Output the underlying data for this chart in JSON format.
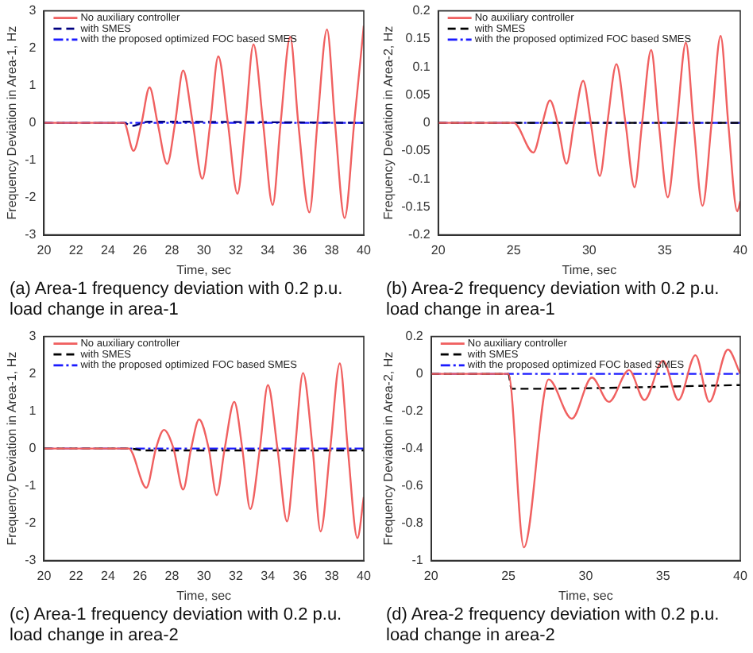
{
  "chart_data": [
    {
      "type": "line",
      "title": "(a)  Area-1 frequency deviation with 0.2 p.u. load change in area-1",
      "xlabel": "Time, sec",
      "ylabel": "Frequency Deviation in Area-1, Hz",
      "xlim": [
        20,
        40
      ],
      "xticks": [
        20,
        22,
        24,
        26,
        28,
        30,
        32,
        34,
        36,
        38,
        40
      ],
      "ylim": [
        -3,
        3
      ],
      "yticks": [
        -3,
        -2,
        -1,
        0,
        1,
        2,
        3
      ],
      "legend": "top left",
      "grid": false,
      "series": [
        {
          "name": "No auxiliary controller",
          "color": "#f06060",
          "line_style": "solid",
          "x": [
            20,
            25,
            25.6,
            26.1,
            26.6,
            27.1,
            27.7,
            28.2,
            28.7,
            29.3,
            29.9,
            30.4,
            30.9,
            31.5,
            32.1,
            32.6,
            33.1,
            33.7,
            34.3,
            34.8,
            35.4,
            35.9,
            36.6,
            37.1,
            37.7,
            38.2,
            38.8,
            39.4,
            40
          ],
          "values": [
            0,
            0,
            -0.75,
            0,
            0.95,
            0,
            -1.1,
            0,
            1.4,
            0,
            -1.5,
            0,
            1.78,
            0,
            -1.9,
            0,
            2.1,
            0,
            -2.2,
            0,
            2.3,
            0,
            -2.4,
            0,
            2.5,
            0,
            -2.55,
            0,
            2.6
          ]
        },
        {
          "name": "with SMES",
          "color": "#000080",
          "line_style": "dashed",
          "x": [
            20,
            25,
            25.5,
            26.5,
            40
          ],
          "values": [
            0,
            0,
            -0.08,
            0.03,
            0
          ]
        },
        {
          "name": "with the proposed optimized FOC based SMES",
          "color": "#1a1aff",
          "line_style": "dashdot",
          "x": [
            20,
            40
          ],
          "values": [
            0,
            0
          ]
        }
      ]
    },
    {
      "type": "line",
      "title": "(b)  Area-2 frequency deviation with 0.2 p.u. load change in area-1",
      "xlabel": "Time, sec",
      "ylabel": "Frequency Deviation in Area-2, Hz",
      "xlim": [
        20,
        40
      ],
      "xticks": [
        20,
        25,
        30,
        35,
        40
      ],
      "ylim": [
        -0.2,
        0.2
      ],
      "yticks": [
        -0.2,
        -0.15,
        -0.1,
        -0.05,
        0,
        0.05,
        0.1,
        0.15,
        0.2
      ],
      "legend": "top left",
      "grid": false,
      "series": [
        {
          "name": "No auxiliary controller",
          "color": "#f06060",
          "line_style": "solid",
          "x": [
            20,
            25,
            26.3,
            26.9,
            27.4,
            27.9,
            28.5,
            29,
            29.6,
            30.1,
            30.7,
            31.2,
            31.8,
            32.4,
            33,
            33.5,
            34.1,
            34.6,
            35.2,
            35.8,
            36.4,
            36.9,
            37.5,
            38.1,
            38.7,
            39.2,
            39.8,
            40
          ],
          "values": [
            0,
            0,
            -0.053,
            0,
            0.04,
            0,
            -0.073,
            0,
            0.075,
            0,
            -0.095,
            0,
            0.105,
            0,
            -0.115,
            0,
            0.13,
            0,
            -0.133,
            0,
            0.143,
            0,
            -0.148,
            0,
            0.155,
            0,
            -0.158,
            -0.14
          ]
        },
        {
          "name": "with SMES",
          "color": "#000000",
          "line_style": "dashed",
          "x": [
            20,
            40
          ],
          "values": [
            0,
            0
          ]
        },
        {
          "name": "with the proposed optimized FOC based SMES",
          "color": "#1a1aff",
          "line_style": "dashdot",
          "x": [
            20,
            40
          ],
          "values": [
            0,
            0
          ]
        }
      ]
    },
    {
      "type": "line",
      "title": "(c)  Area-1 frequency deviation with 0.2 p.u. load change in area-2",
      "xlabel": "Time, sec",
      "ylabel": "Frequency Deviation in Area-1, Hz",
      "xlim": [
        20,
        40
      ],
      "xticks": [
        20,
        22,
        24,
        26,
        28,
        30,
        32,
        34,
        36,
        38,
        40
      ],
      "ylim": [
        -3,
        3
      ],
      "yticks": [
        -3,
        -2,
        -1,
        0,
        1,
        2,
        3
      ],
      "legend": "top left",
      "grid": false,
      "series": [
        {
          "name": "No auxiliary controller",
          "color": "#f06060",
          "line_style": "solid",
          "x": [
            20,
            25.3,
            26.4,
            27,
            27.5,
            28.1,
            28.7,
            29.2,
            29.7,
            30.3,
            30.8,
            31.3,
            31.9,
            32.4,
            32.9,
            33.5,
            34,
            34.6,
            35.2,
            35.7,
            36.2,
            36.8,
            37.3,
            37.9,
            38.5,
            39,
            39.6,
            40
          ],
          "values": [
            0,
            0,
            -1.05,
            0,
            0.5,
            0,
            -1.1,
            0,
            0.78,
            0,
            -1.25,
            0,
            1.25,
            0,
            -1.62,
            0,
            1.7,
            0,
            -1.95,
            0,
            2.02,
            0,
            -2.22,
            0,
            2.28,
            0,
            -2.4,
            -1.3
          ]
        },
        {
          "name": "with SMES",
          "color": "#000000",
          "line_style": "dashed",
          "x": [
            20,
            25.3,
            26.3,
            40
          ],
          "values": [
            0,
            0,
            -0.05,
            -0.05
          ]
        },
        {
          "name": "with the proposed optimized FOC based SMES",
          "color": "#1a1aff",
          "line_style": "dashdot",
          "x": [
            20,
            40
          ],
          "values": [
            0,
            0
          ]
        }
      ]
    },
    {
      "type": "line",
      "title": "(d)  Area-2 frequency deviation with 0.2 p.u. load change in area-2",
      "xlabel": "Time, sec",
      "ylabel": "Frequency Deviation in Area-2, Hz",
      "xlim": [
        20,
        40
      ],
      "xticks": [
        20,
        25,
        30,
        35,
        40
      ],
      "ylim": [
        -1,
        0.2
      ],
      "yticks": [
        -1,
        -0.8,
        -0.6,
        -0.4,
        -0.2,
        0,
        0.2
      ],
      "legend": "top left",
      "grid": false,
      "series": [
        {
          "name": "No auxiliary controller",
          "color": "#f06060",
          "line_style": "solid",
          "x": [
            20,
            25,
            26,
            27.6,
            29.1,
            30.4,
            31.5,
            32.8,
            33.8,
            35,
            36,
            37.1,
            38,
            39.2,
            40
          ],
          "values": [
            0,
            0,
            -0.93,
            -0.03,
            -0.24,
            -0.02,
            -0.15,
            0.02,
            -0.14,
            0.07,
            -0.14,
            0.1,
            -0.15,
            0.13,
            0
          ]
        },
        {
          "name": "with SMES",
          "color": "#000000",
          "line_style": "dashed",
          "x": [
            20,
            25,
            25.2,
            26,
            40
          ],
          "values": [
            0,
            0,
            -0.08,
            -0.08,
            -0.06
          ]
        },
        {
          "name": "with the proposed optimized FOC based SMES",
          "color": "#1a1aff",
          "line_style": "dashdot",
          "x": [
            20,
            40
          ],
          "values": [
            0,
            0
          ]
        }
      ]
    }
  ]
}
